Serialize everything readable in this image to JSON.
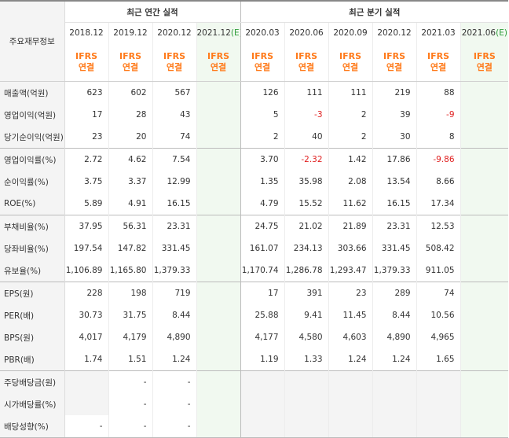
{
  "header": {
    "row_label_title": "주요재무정보",
    "annual_title": "최근 연간 실적",
    "quarterly_title": "최근 분기 실적",
    "basis_line1": "IFRS",
    "basis_line2": "연결",
    "estimate_marker": "(E)",
    "annual_periods": [
      "2018.12",
      "2019.12",
      "2020.12",
      "2021.12"
    ],
    "quarterly_periods": [
      "2020.03",
      "2020.06",
      "2020.09",
      "2020.12",
      "2021.03",
      "2021.06"
    ]
  },
  "rows": [
    {
      "label": "매출액(억원)",
      "annual": [
        "623",
        "602",
        "567",
        ""
      ],
      "quarterly": [
        "126",
        "111",
        "111",
        "219",
        "88",
        ""
      ]
    },
    {
      "label": "영업이익(억원)",
      "annual": [
        "17",
        "28",
        "43",
        ""
      ],
      "quarterly": [
        "5",
        "-3",
        "2",
        "39",
        "-9",
        ""
      ]
    },
    {
      "label": "당기순이익(억원)",
      "annual": [
        "23",
        "20",
        "74",
        ""
      ],
      "quarterly": [
        "2",
        "40",
        "2",
        "30",
        "8",
        ""
      ]
    },
    {
      "label": "영업이익률(%)",
      "annual": [
        "2.72",
        "4.62",
        "7.54",
        ""
      ],
      "quarterly": [
        "3.70",
        "-2.32",
        "1.42",
        "17.86",
        "-9.86",
        ""
      ]
    },
    {
      "label": "순이익률(%)",
      "annual": [
        "3.75",
        "3.37",
        "12.99",
        ""
      ],
      "quarterly": [
        "1.35",
        "35.98",
        "2.08",
        "13.54",
        "8.66",
        ""
      ]
    },
    {
      "label": "ROE(%)",
      "annual": [
        "5.89",
        "4.91",
        "16.15",
        ""
      ],
      "quarterly": [
        "4.79",
        "15.52",
        "11.62",
        "16.15",
        "17.34",
        ""
      ]
    },
    {
      "label": "부채비율(%)",
      "annual": [
        "37.95",
        "56.31",
        "23.31",
        ""
      ],
      "quarterly": [
        "24.75",
        "21.02",
        "21.89",
        "23.31",
        "12.53",
        ""
      ]
    },
    {
      "label": "당좌비율(%)",
      "annual": [
        "197.54",
        "147.82",
        "331.45",
        ""
      ],
      "quarterly": [
        "161.07",
        "234.13",
        "303.66",
        "331.45",
        "508.42",
        ""
      ]
    },
    {
      "label": "유보율(%)",
      "annual": [
        "1,106.89",
        "1,165.80",
        "1,379.33",
        ""
      ],
      "quarterly": [
        "1,170.74",
        "1,286.78",
        "1,293.47",
        "1,379.33",
        "911.05",
        ""
      ]
    },
    {
      "label": "EPS(원)",
      "annual": [
        "228",
        "198",
        "719",
        ""
      ],
      "quarterly": [
        "17",
        "391",
        "23",
        "289",
        "74",
        ""
      ]
    },
    {
      "label": "PER(배)",
      "annual": [
        "30.73",
        "31.75",
        "8.44",
        ""
      ],
      "quarterly": [
        "25.88",
        "9.41",
        "11.45",
        "8.44",
        "10.56",
        ""
      ]
    },
    {
      "label": "BPS(원)",
      "annual": [
        "4,017",
        "4,179",
        "4,890",
        ""
      ],
      "quarterly": [
        "4,177",
        "4,580",
        "4,603",
        "4,890",
        "4,965",
        ""
      ]
    },
    {
      "label": "PBR(배)",
      "annual": [
        "1.74",
        "1.51",
        "1.24",
        ""
      ],
      "quarterly": [
        "1.19",
        "1.33",
        "1.24",
        "1.24",
        "1.65",
        ""
      ]
    },
    {
      "label": "주당배당금(원)",
      "annual": [
        "",
        "-",
        "-",
        ""
      ],
      "quarterly": [
        "",
        "",
        "",
        "",
        "",
        ""
      ]
    },
    {
      "label": "시가배당률(%)",
      "annual": [
        "",
        "-",
        "-",
        ""
      ],
      "quarterly": [
        "",
        "",
        "",
        "",
        "",
        ""
      ]
    },
    {
      "label": "배당성향(%)",
      "annual": [
        "-",
        "-",
        "-",
        ""
      ],
      "quarterly": [
        "",
        "",
        "",
        "",
        "",
        ""
      ]
    }
  ]
}
